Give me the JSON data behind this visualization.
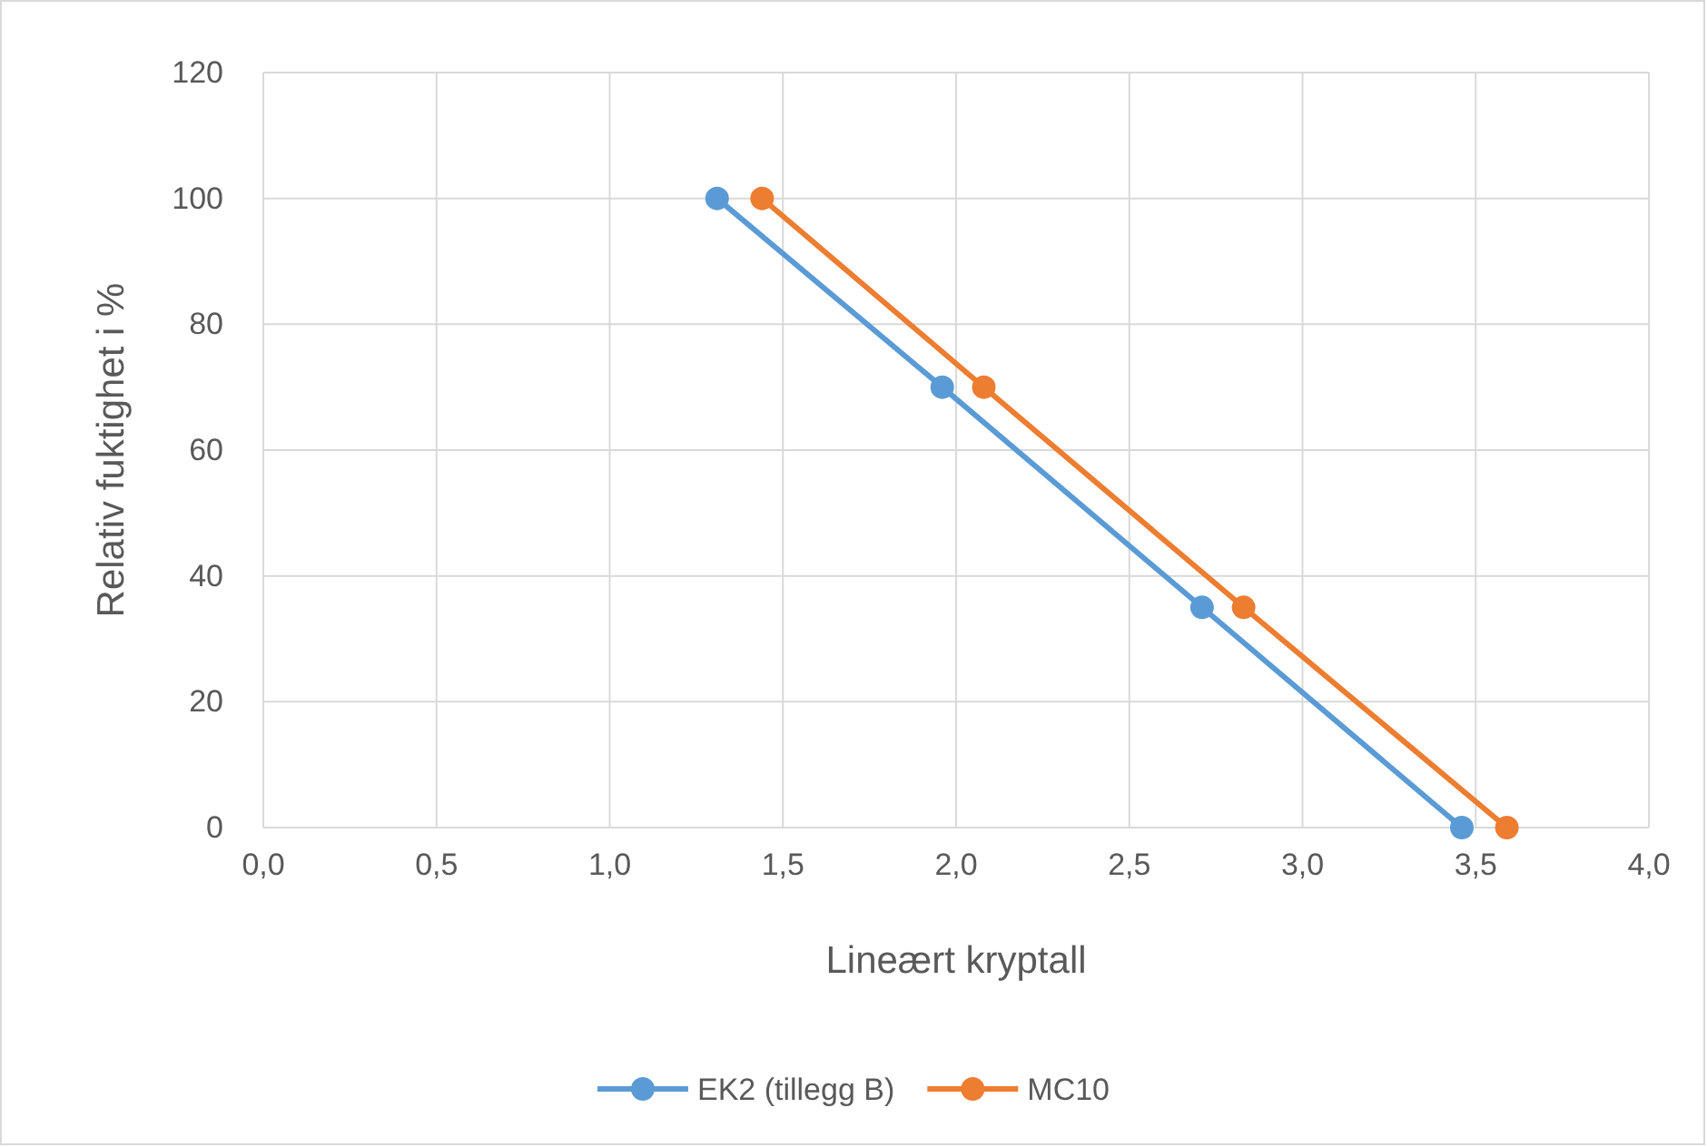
{
  "chart_data": {
    "type": "line",
    "xlabel": "Lineært kryptall",
    "ylabel": "Relativ fuktighet i %",
    "series": [
      {
        "name": "EK2 (tillegg B)",
        "color": "#5b9bd5",
        "x": [
          1.31,
          1.96,
          2.71,
          3.46
        ],
        "values": [
          100,
          70,
          35,
          0
        ]
      },
      {
        "name": "MC10",
        "color": "#ed7d31",
        "x": [
          1.44,
          2.08,
          2.83,
          3.59
        ],
        "values": [
          100,
          70,
          35,
          0
        ]
      }
    ],
    "xlim": [
      0,
      4
    ],
    "xticks": [
      {
        "value": 0,
        "label": "0,0"
      },
      {
        "value": 0.5,
        "label": "0,5"
      },
      {
        "value": 1,
        "label": "1,0"
      },
      {
        "value": 1.5,
        "label": "1,5"
      },
      {
        "value": 2,
        "label": "2,0"
      },
      {
        "value": 2.5,
        "label": "2,5"
      },
      {
        "value": 3,
        "label": "3,0"
      },
      {
        "value": 3.5,
        "label": "3,5"
      },
      {
        "value": 4,
        "label": "4,0"
      }
    ],
    "ylim": [
      0,
      120
    ],
    "yticks": [
      0,
      20,
      40,
      60,
      80,
      100,
      120
    ],
    "grid": true,
    "legend": "bottom",
    "marker": "circle",
    "line_style": "solid"
  }
}
